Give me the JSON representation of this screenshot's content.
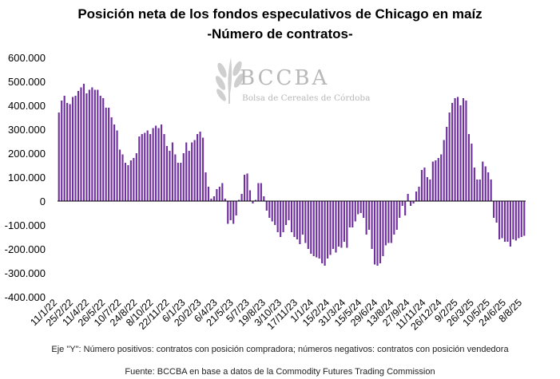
{
  "title_line1": "Posición neta de los fondos especulativos de Chicago en maíz",
  "title_line2": "-Número de contratos-",
  "logo": {
    "name": "BCCBA",
    "subtitle": "Bolsa de Cereales de Córdoba"
  },
  "note_axis": "Eje \"Y\": Número positivos: contratos con posición compradora; números negativos: contratos con posición vendedora",
  "note_source": "Fuente: BCCBA en base a datos de la Commodity Futures Trading Commission",
  "colors": {
    "bar": "#7030A0",
    "axis": "#000000"
  },
  "chart_data": {
    "type": "bar",
    "title": "Posición neta de los fondos especulativos de Chicago en maíz",
    "subtitle": "-Número de contratos-",
    "ylim": [
      -400000,
      600000
    ],
    "yticks": [
      600000,
      500000,
      400000,
      300000,
      200000,
      100000,
      0,
      -100000,
      -200000,
      -300000,
      -400000
    ],
    "ytick_labels": [
      "600.000",
      "500.000",
      "400.000",
      "300.000",
      "200.000",
      "100.000",
      "0",
      "-100.000",
      "-200.000",
      "-300.000",
      "-400.000"
    ],
    "x_tick_labels": [
      "11/1/22",
      "25/2/22",
      "11/4/22",
      "26/5/22",
      "10/7/22",
      "24/8/22",
      "8/10/22",
      "22/11/22",
      "6/1/23",
      "20/2/23",
      "6/4/23",
      "21/5/23",
      "5/7/23",
      "19/8/23",
      "3/10/23",
      "17/11/23",
      "1/1/24",
      "15/2/24",
      "31/3/24",
      "15/5/24",
      "29/6/24",
      "13/8/24",
      "27/9/24",
      "11/11/24",
      "26/12/24",
      "9/2/25",
      "26/3/25",
      "10/5/25",
      "24/6/25",
      "8/8/25"
    ],
    "legend": "none",
    "grid": false,
    "series": [
      {
        "values": [
          370000,
          420000,
          440000,
          410000,
          405000,
          435000,
          440000,
          460000,
          475000,
          490000,
          450000,
          465000,
          475000,
          465000,
          465000,
          440000,
          430000,
          390000,
          390000,
          350000,
          320000,
          295000,
          215000,
          195000,
          160000,
          150000,
          170000,
          180000,
          200000,
          270000,
          280000,
          285000,
          295000,
          280000,
          305000,
          315000,
          305000,
          320000,
          280000,
          230000,
          210000,
          245000,
          195000,
          160000,
          160000,
          200000,
          245000,
          210000,
          245000,
          255000,
          280000,
          290000,
          265000,
          120000,
          60000,
          10000,
          20000,
          50000,
          60000,
          75000,
          10000,
          -95000,
          -80000,
          -95000,
          -60000,
          5000,
          30000,
          110000,
          115000,
          45000,
          -10000,
          5000,
          75000,
          75000,
          20000,
          -40000,
          -70000,
          -85000,
          -100000,
          -130000,
          -150000,
          -130000,
          -100000,
          -80000,
          -130000,
          -150000,
          -160000,
          -180000,
          -140000,
          -175000,
          -200000,
          -220000,
          -230000,
          -235000,
          -240000,
          -260000,
          -270000,
          -240000,
          -225000,
          -200000,
          -215000,
          -190000,
          -195000,
          -170000,
          -195000,
          -110000,
          -110000,
          -85000,
          -55000,
          -50000,
          -70000,
          -140000,
          -120000,
          -200000,
          -265000,
          -270000,
          -260000,
          -230000,
          -185000,
          -175000,
          -175000,
          -140000,
          -120000,
          -70000,
          -20000,
          -60000,
          30000,
          -20000,
          -10000,
          40000,
          60000,
          130000,
          140000,
          100000,
          90000,
          165000,
          170000,
          180000,
          195000,
          255000,
          310000,
          370000,
          410000,
          430000,
          435000,
          400000,
          430000,
          420000,
          280000,
          240000,
          140000,
          90000,
          90000,
          165000,
          145000,
          120000,
          90000,
          -70000,
          -90000,
          -160000,
          -155000,
          -170000,
          -170000,
          -190000,
          -160000,
          -165000,
          -155000,
          -150000,
          -145000
        ]
      }
    ]
  }
}
